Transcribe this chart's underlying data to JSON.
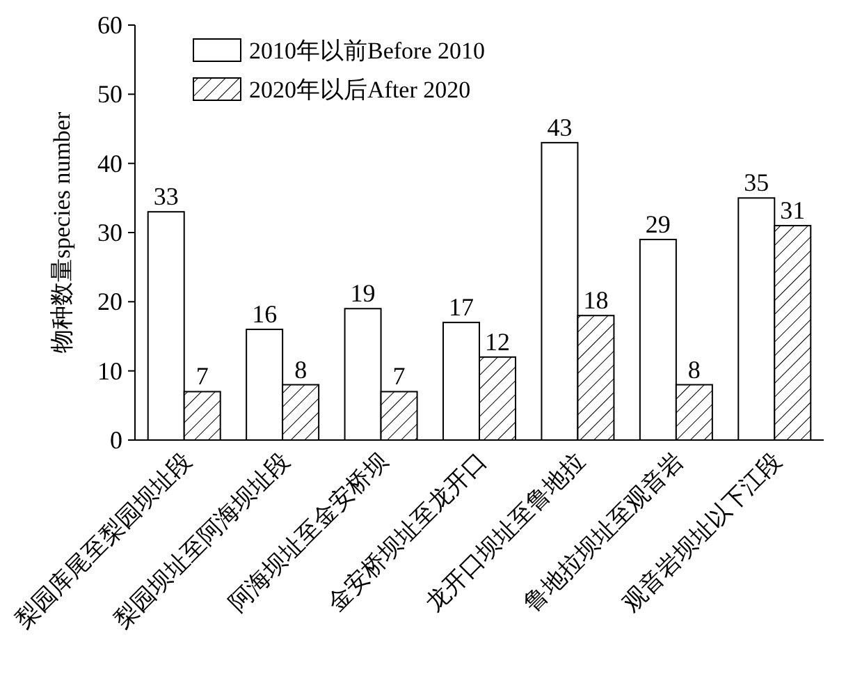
{
  "chart_data": {
    "type": "bar",
    "ylabel": "物种数量species number",
    "categories": [
      "梨园库尾至梨园坝址段",
      "梨园坝址至阿海坝址段",
      "阿海坝址至金安桥坝",
      "金安桥坝址至龙开口",
      "龙开口坝址至鲁地拉",
      "鲁地拉坝址至观音岩",
      "观音岩坝址以下江段"
    ],
    "series": [
      {
        "name": "2010年以前Before 2010",
        "color": "#ffffff",
        "values": [
          33,
          16,
          19,
          17,
          43,
          29,
          35
        ]
      },
      {
        "name": "2020年以后After 2020",
        "color": "#000000",
        "values": [
          7,
          8,
          7,
          12,
          18,
          8,
          31
        ]
      }
    ],
    "ylim": [
      0,
      60
    ],
    "yticks": [
      0,
      10,
      20,
      30,
      40,
      50,
      60
    ],
    "data_labels": true,
    "legend": "top left",
    "grid": false
  }
}
